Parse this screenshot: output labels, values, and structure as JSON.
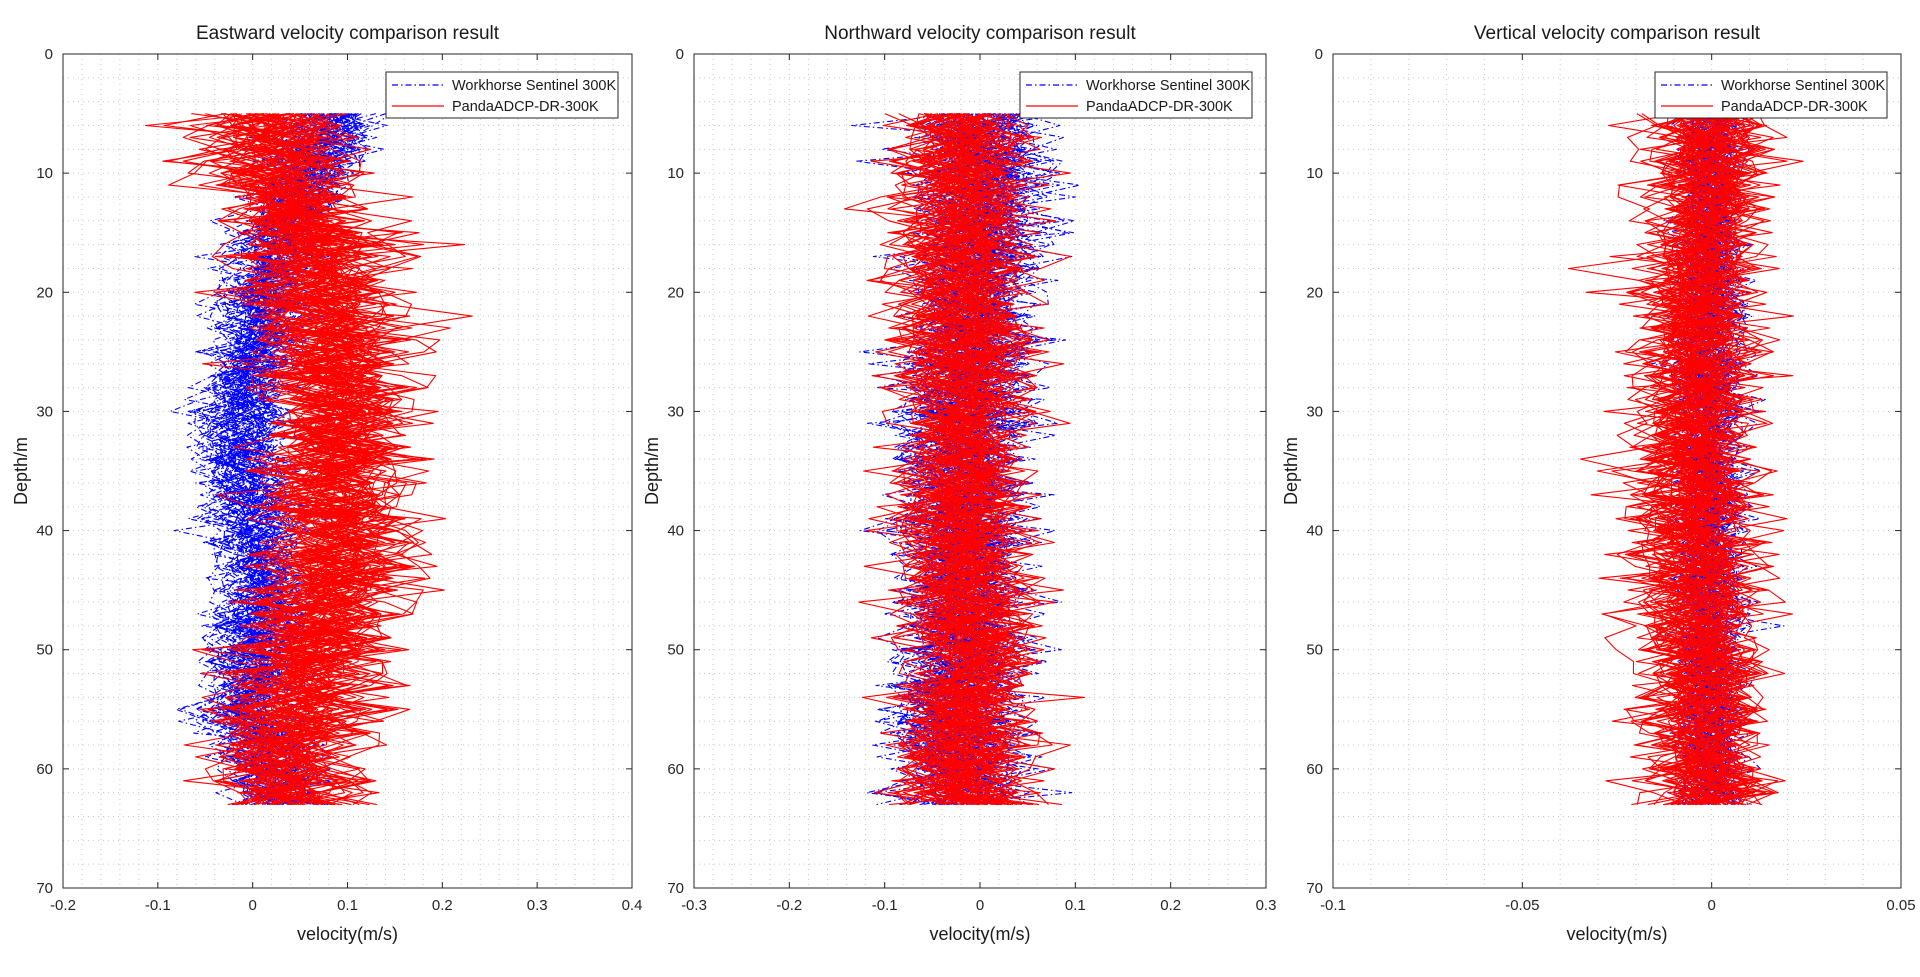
{
  "chart_data": [
    {
      "type": "line",
      "title": "Eastward velocity comparison result",
      "xlabel": "velocity(m/s)",
      "ylabel": "Depth/m",
      "xlim": [
        -0.2,
        0.4
      ],
      "ylim": [
        0,
        70
      ],
      "y_reversed": true,
      "xticks": [
        -0.2,
        -0.1,
        0,
        0.1,
        0.2,
        0.3,
        0.4
      ],
      "xtick_labels": [
        "-0.2",
        "-0.1",
        "0",
        "0.1",
        "0.2",
        "0.3",
        "0.4"
      ],
      "yticks": [
        0,
        10,
        20,
        30,
        40,
        50,
        60,
        70
      ],
      "ytick_labels": [
        "0",
        "10",
        "20",
        "30",
        "40",
        "50",
        "60",
        "70"
      ],
      "grid": "dotted",
      "legend_position": "top-right",
      "series": [
        {
          "name": "Workhorse Sentinel 300K",
          "style": "dash-dot",
          "color": "#0000ff",
          "profile_count": 60,
          "depth_range": [
            5,
            63
          ],
          "mean_profile": {
            "depth": [
              5,
              10,
              15,
              20,
              25,
              30,
              35,
              40,
              45,
              50,
              55,
              60,
              63
            ],
            "velocity": [
              0.08,
              0.06,
              0.03,
              0.01,
              0.0,
              -0.01,
              -0.01,
              0.0,
              0.01,
              0.0,
              -0.01,
              0.02,
              0.03
            ]
          }
        },
        {
          "name": "PandaADCP-DR-300K",
          "style": "solid",
          "color": "#ff0000",
          "profile_count": 60,
          "depth_range": [
            5,
            63
          ],
          "mean_profile": {
            "depth": [
              5,
              10,
              15,
              20,
              25,
              30,
              35,
              40,
              45,
              50,
              55,
              60,
              63
            ],
            "velocity": [
              0.02,
              0.03,
              0.06,
              0.08,
              0.09,
              0.1,
              0.09,
              0.1,
              0.09,
              0.07,
              0.05,
              0.04,
              0.04
            ]
          }
        }
      ]
    },
    {
      "type": "line",
      "title": "Northward velocity comparison result",
      "xlabel": "velocity(m/s)",
      "ylabel": "Depth/m",
      "xlim": [
        -0.3,
        0.3
      ],
      "ylim": [
        0,
        70
      ],
      "y_reversed": true,
      "xticks": [
        -0.3,
        -0.2,
        -0.1,
        0,
        0.1,
        0.2,
        0.3
      ],
      "xtick_labels": [
        "-0.3",
        "-0.2",
        "-0.1",
        "0",
        "0.1",
        "0.2",
        "0.3"
      ],
      "yticks": [
        0,
        10,
        20,
        30,
        40,
        50,
        60,
        70
      ],
      "ytick_labels": [
        "0",
        "10",
        "20",
        "30",
        "40",
        "50",
        "60",
        "70"
      ],
      "grid": "dotted",
      "legend_position": "top-right",
      "series": [
        {
          "name": "Workhorse Sentinel 300K",
          "style": "dash-dot",
          "color": "#0000ff",
          "profile_count": 60,
          "depth_range": [
            5,
            63
          ],
          "mean_profile": {
            "depth": [
              5,
              10,
              15,
              20,
              25,
              30,
              35,
              40,
              45,
              50,
              55,
              60,
              63
            ],
            "velocity": [
              0.0,
              0.0,
              0.0,
              -0.01,
              -0.01,
              -0.02,
              -0.02,
              -0.02,
              -0.02,
              -0.02,
              -0.03,
              -0.02,
              -0.02
            ]
          }
        },
        {
          "name": "PandaADCP-DR-300K",
          "style": "solid",
          "color": "#ff0000",
          "profile_count": 60,
          "depth_range": [
            5,
            63
          ],
          "mean_profile": {
            "depth": [
              5,
              10,
              15,
              20,
              25,
              30,
              35,
              40,
              45,
              50,
              55,
              60,
              63
            ],
            "velocity": [
              -0.02,
              -0.02,
              -0.02,
              -0.02,
              -0.02,
              -0.02,
              -0.02,
              -0.02,
              -0.02,
              -0.01,
              -0.02,
              -0.02,
              -0.02
            ]
          }
        }
      ]
    },
    {
      "type": "line",
      "title": "Vertical velocity comparison result",
      "xlabel": "velocity(m/s)",
      "ylabel": "Depth/m",
      "xlim": [
        -0.1,
        0.05
      ],
      "ylim": [
        0,
        70
      ],
      "y_reversed": true,
      "xticks": [
        -0.1,
        -0.05,
        0,
        0.05
      ],
      "xtick_labels": [
        "-0.1",
        "-0.05",
        "0",
        "0.05"
      ],
      "yticks": [
        0,
        10,
        20,
        30,
        40,
        50,
        60,
        70
      ],
      "ytick_labels": [
        "0",
        "10",
        "20",
        "30",
        "40",
        "50",
        "60",
        "70"
      ],
      "grid": "dotted",
      "legend_position": "top-right",
      "series": [
        {
          "name": "Workhorse Sentinel 300K",
          "style": "dash-dot",
          "color": "#0000ff",
          "profile_count": 60,
          "depth_range": [
            5,
            63
          ],
          "mean_profile": {
            "depth": [
              5,
              10,
              15,
              20,
              25,
              30,
              35,
              40,
              45,
              50,
              55,
              60,
              63
            ],
            "velocity": [
              0.0,
              0.0,
              0.0,
              0.0,
              0.0,
              0.0,
              0.0,
              0.0,
              0.0,
              0.0,
              0.0,
              0.0,
              0.0
            ]
          }
        },
        {
          "name": "PandaADCP-DR-300K",
          "style": "solid",
          "color": "#ff0000",
          "profile_count": 60,
          "depth_range": [
            5,
            63
          ],
          "mean_profile": {
            "depth": [
              5,
              10,
              15,
              20,
              25,
              30,
              35,
              40,
              45,
              50,
              55,
              60,
              63
            ],
            "velocity": [
              0.0,
              0.0,
              -0.002,
              -0.003,
              -0.003,
              -0.004,
              -0.004,
              -0.004,
              -0.003,
              -0.003,
              -0.002,
              -0.001,
              0.0
            ]
          }
        }
      ]
    }
  ]
}
